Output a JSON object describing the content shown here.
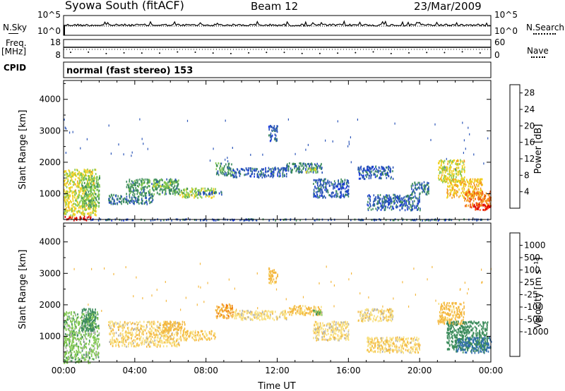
{
  "header": {
    "station": "Syowa South (fitACF)",
    "beam": "Beam 12",
    "date": "23/Mar/2009"
  },
  "top_panels": {
    "nsky_label": "N.Sky",
    "nsearch_label": "N.Search",
    "freq_label_line1": "Freq.",
    "freq_label_line2": "[MHz]",
    "nave_label": "Nave",
    "cpid_label": "CPID",
    "cpid_value": "normal (fast stereo) 153",
    "noise_ticks_left": [
      "10^5",
      "10^0"
    ],
    "noise_ticks_right": [
      "10^5",
      "10^0"
    ],
    "freq_ticks_left": [
      "18",
      "8"
    ],
    "nave_ticks_right": [
      "60",
      "0"
    ]
  },
  "chart_data": [
    {
      "type": "heatmap",
      "name": "power",
      "ylabel": "Slant Range [km]",
      "xlabel": "",
      "y_ticks": [
        "4000",
        "3000",
        "2000",
        "1000"
      ],
      "y_tick_values": [
        4000,
        3000,
        2000,
        1000
      ],
      "ylim": [
        180,
        4600
      ],
      "xlim_hours": [
        0,
        24
      ],
      "colorbar": {
        "label": "Power [dB]",
        "ticks": [
          "28",
          "24",
          "20",
          "16",
          "12",
          "8",
          "4"
        ],
        "tick_values": [
          28,
          24,
          20,
          16,
          12,
          8,
          4
        ],
        "range": [
          0,
          30
        ],
        "colors": [
          "#1030e0",
          "#2a54b8",
          "#3c8c5c",
          "#80c850",
          "#f0d020",
          "#f49a20",
          "#f05010",
          "#e00000"
        ]
      },
      "regions": [
        {
          "t0": 0.0,
          "t1": 1.8,
          "r0": 300,
          "r1": 1800,
          "v": 16
        },
        {
          "t0": 1.0,
          "t1": 2.0,
          "r0": 600,
          "r1": 1600,
          "v": 12
        },
        {
          "t0": 2.5,
          "t1": 5.0,
          "r0": 700,
          "r1": 1000,
          "v": 8
        },
        {
          "t0": 3.5,
          "t1": 6.5,
          "r0": 1000,
          "r1": 1500,
          "v": 10
        },
        {
          "t0": 5.0,
          "t1": 6.0,
          "r0": 1200,
          "r1": 1400,
          "v": 14
        },
        {
          "t0": 6.5,
          "t1": 8.5,
          "r0": 900,
          "r1": 1200,
          "v": 14
        },
        {
          "t0": 7.5,
          "t1": 9.0,
          "r0": 1000,
          "r1": 1100,
          "v": 6
        },
        {
          "t0": 8.5,
          "t1": 9.5,
          "r0": 1600,
          "r1": 2000,
          "v": 10
        },
        {
          "t0": 9.5,
          "t1": 12.5,
          "r0": 1550,
          "r1": 1850,
          "v": 6
        },
        {
          "t0": 11.5,
          "t1": 12.0,
          "r0": 2700,
          "r1": 3200,
          "v": 6
        },
        {
          "t0": 12.5,
          "t1": 14.5,
          "r0": 1700,
          "r1": 2000,
          "v": 8
        },
        {
          "t0": 13.5,
          "t1": 14.2,
          "r0": 1700,
          "r1": 1850,
          "v": 14
        },
        {
          "t0": 14.0,
          "t1": 16.0,
          "r0": 900,
          "r1": 1500,
          "v": 6
        },
        {
          "t0": 16.5,
          "t1": 18.5,
          "r0": 1500,
          "r1": 1900,
          "v": 6
        },
        {
          "t0": 17.0,
          "t1": 20.0,
          "r0": 500,
          "r1": 1000,
          "v": 6
        },
        {
          "t0": 19.5,
          "t1": 20.5,
          "r0": 1000,
          "r1": 1400,
          "v": 8
        },
        {
          "t0": 21.0,
          "t1": 22.5,
          "r0": 1400,
          "r1": 2100,
          "v": 16
        },
        {
          "t0": 21.5,
          "t1": 23.5,
          "r0": 900,
          "r1": 1500,
          "v": 18
        },
        {
          "t0": 22.5,
          "t1": 24.0,
          "r0": 600,
          "r1": 1100,
          "v": 22
        },
        {
          "t0": 23.0,
          "t1": 24.0,
          "r0": 500,
          "r1": 700,
          "v": 28
        },
        {
          "t0": 0.0,
          "t1": 1.5,
          "r0": 180,
          "r1": 300,
          "v": 28
        },
        {
          "t0": 1.5,
          "t1": 24.0,
          "r0": 180,
          "r1": 220,
          "v": 6
        }
      ]
    },
    {
      "type": "heatmap",
      "name": "velocity",
      "ylabel": "Slant Range [km]",
      "xlabel": "Time UT",
      "y_ticks": [
        "4000",
        "3000",
        "2000",
        "1000"
      ],
      "y_tick_values": [
        4000,
        3000,
        2000,
        1000
      ],
      "ylim": [
        180,
        4600
      ],
      "xlim_hours": [
        0,
        24
      ],
      "x_ticks": [
        "00:00",
        "04:00",
        "08:00",
        "12:00",
        "16:00",
        "20:00",
        "00:00"
      ],
      "x_tick_values": [
        0,
        4,
        8,
        12,
        16,
        20,
        24
      ],
      "colorbar": {
        "label": "Velocity [m s⁻¹]",
        "ticks": [
          "1000",
          "500",
          "100",
          "25",
          "-25",
          "-100",
          "-500",
          "-1000"
        ],
        "tick_values": [
          1000,
          500,
          100,
          25,
          -25,
          -100,
          -500,
          -1000
        ],
        "colors": [
          "#1540c0",
          "#2e6cb0",
          "#3c8c5c",
          "#80c850",
          "#b0b0b0",
          "#f8e080",
          "#f4b840",
          "#f08010",
          "#e85010",
          "#e00000"
        ]
      },
      "regions": [
        {
          "t0": 0.0,
          "t1": 2.0,
          "r0": 300,
          "r1": 1800,
          "v": 60
        },
        {
          "t0": 1.0,
          "t1": 1.8,
          "r0": 1200,
          "r1": 1900,
          "v": 300
        },
        {
          "t0": 2.5,
          "t1": 6.5,
          "r0": 700,
          "r1": 1500,
          "v": -80
        },
        {
          "t0": 5.5,
          "t1": 6.8,
          "r0": 1200,
          "r1": 1500,
          "v": -300
        },
        {
          "t0": 6.5,
          "t1": 8.5,
          "r0": 900,
          "r1": 1200,
          "v": -120
        },
        {
          "t0": 8.5,
          "t1": 9.5,
          "r0": 1600,
          "r1": 2050,
          "v": -400
        },
        {
          "t0": 9.5,
          "t1": 12.5,
          "r0": 1550,
          "r1": 1850,
          "v": -60
        },
        {
          "t0": 11.5,
          "t1": 12.0,
          "r0": 2700,
          "r1": 3200,
          "v": -200
        },
        {
          "t0": 12.5,
          "t1": 14.5,
          "r0": 1700,
          "r1": 2000,
          "v": -150
        },
        {
          "t0": 14.0,
          "t1": 14.5,
          "r0": 1700,
          "r1": 1850,
          "v": 80
        },
        {
          "t0": 14.0,
          "t1": 16.0,
          "r0": 900,
          "r1": 1500,
          "v": -60
        },
        {
          "t0": 16.5,
          "t1": 18.5,
          "r0": 1500,
          "r1": 1900,
          "v": -60
        },
        {
          "t0": 17.0,
          "t1": 20.0,
          "r0": 500,
          "r1": 1000,
          "v": -80
        },
        {
          "t0": 21.0,
          "t1": 22.5,
          "r0": 1400,
          "r1": 2100,
          "v": -200
        },
        {
          "t0": 21.5,
          "t1": 23.8,
          "r0": 600,
          "r1": 1500,
          "v": 300
        },
        {
          "t0": 22.0,
          "t1": 24.0,
          "r0": 500,
          "r1": 1000,
          "v": 600
        },
        {
          "t0": 0.0,
          "t1": 1.5,
          "r0": 180,
          "r1": 300,
          "v": 60
        }
      ]
    }
  ]
}
